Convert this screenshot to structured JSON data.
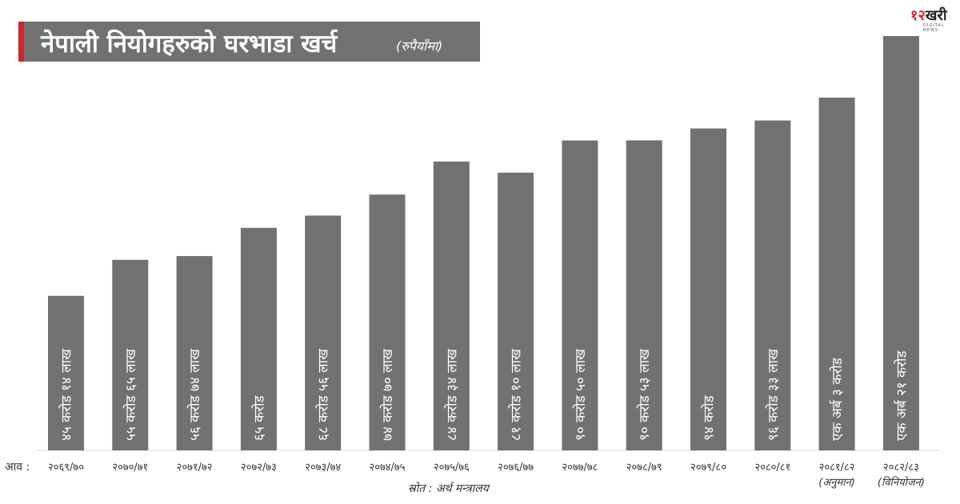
{
  "header": {
    "title": "नेपाली नियोगहरुको घरभाडा खर्च",
    "subtitle": "(रुपैयाँमा)"
  },
  "logo": {
    "mark_number": "१२",
    "mark_text": "खरी",
    "tagline": "DIGITAL NEWS"
  },
  "colors": {
    "bar": "#737070",
    "title_background": "#737070",
    "accent": "#d92128",
    "bar_label": "#ffffff",
    "axis_text": "#333333"
  },
  "chart_data": {
    "type": "bar",
    "title": "नेपाली नियोगहरुको घरभाडा खर्च",
    "unit": "(रुपैयाँमा)",
    "x_prefix": "आव :",
    "source": "स्रोत : अर्थ मन्त्रालय",
    "categories": [
      "२०६९/७०",
      "२०७०/७१",
      "२०७१/७२",
      "२०७२/७३",
      "२०७३/७४",
      "२०७४/७५",
      "२०७५/७६",
      "२०७६/७७",
      "२०७७/७८",
      "२०७८/७९",
      "२०७९/८०",
      "२०८०/८१",
      "२०८१/८२",
      "२०८२/८३"
    ],
    "category_notes": [
      "",
      "",
      "",
      "",
      "",
      "",
      "",
      "",
      "",
      "",
      "",
      "",
      "(अनुमान)",
      "(विनियोजन)"
    ],
    "labels": [
      "४५ करोड १४ लाख",
      "५५ करोड ६५ लाख",
      "५६ करोड ७४ लाख",
      "६५ करोड",
      "६८ करोड ५६ लाख",
      "७४ करोड ७० लाख",
      "८४ करोड ३४ लाख",
      "८१ करोड १० लाख",
      "९० करोड ५० लाख",
      "९० करोड ५३ लाख",
      "९४ करोड",
      "९६ करोड ३३ लाख",
      "एक अर्ब ३ करोड",
      "एक अर्ब २१ करोड"
    ],
    "values": [
      451400000,
      556500000,
      567400000,
      650000000,
      685600000,
      747000000,
      843400000,
      811000000,
      905000000,
      905300000,
      940000000,
      963300000,
      1030000000,
      1210000000
    ],
    "legend": "none",
    "grid": false
  }
}
